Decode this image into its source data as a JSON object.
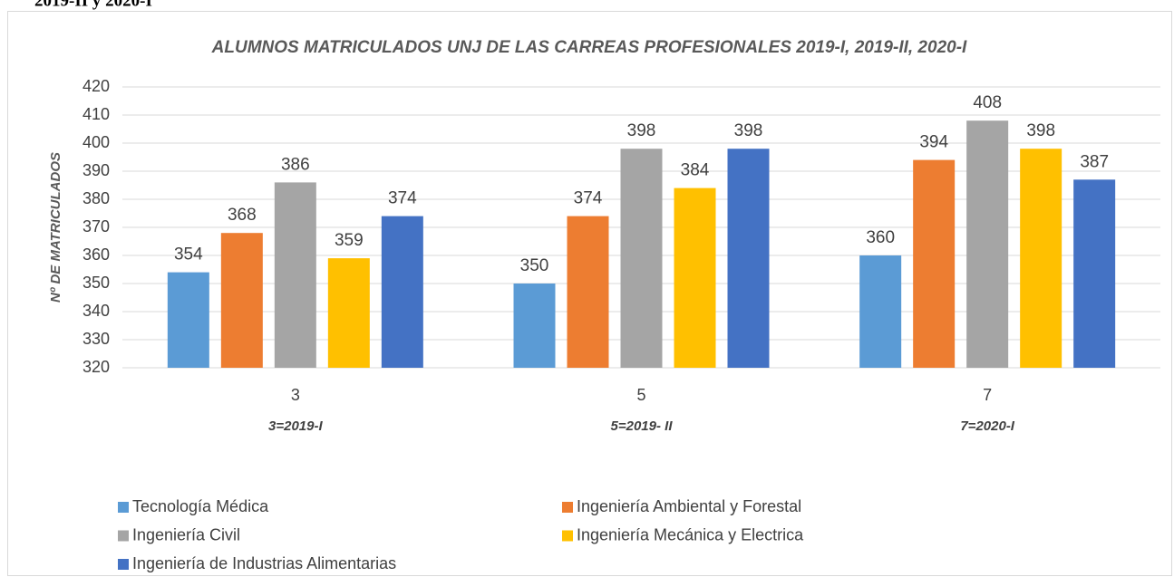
{
  "chart_data": {
    "type": "bar",
    "page_heading": "2019-II y 2020-I",
    "title": "ALUMNOS MATRICULADOS UNJ DE LAS CARREAS PROFESIONALES 2019-I, 2019-II, 2020-I",
    "y_label": "Nº DE MATRICULADOS",
    "categories": [
      "3",
      "5",
      "7"
    ],
    "category_notes": [
      "3=2019-I",
      "5=2019- II",
      "7=2020-I"
    ],
    "series": [
      {
        "name": "Tecnología Médica",
        "color": "#5b9bd5",
        "values": [
          354,
          350,
          360
        ]
      },
      {
        "name": "Ingeniería Ambiental y Forestal",
        "color": "#ed7d31",
        "values": [
          368,
          374,
          394
        ]
      },
      {
        "name": "Ingeniería Civil",
        "color": "#a5a5a5",
        "values": [
          386,
          398,
          408
        ]
      },
      {
        "name": "Ingeniería Mecánica y Electrica",
        "color": "#ffc000",
        "values": [
          359,
          384,
          398
        ]
      },
      {
        "name": "Ingeniería de Industrias Alimentarias",
        "color": "#4472c4",
        "values": [
          374,
          398,
          387
        ]
      }
    ],
    "ylim": [
      320,
      420
    ],
    "yticks": [
      320,
      330,
      340,
      350,
      360,
      370,
      380,
      390,
      400,
      410,
      420
    ],
    "grid": true,
    "legend": "bottom"
  }
}
